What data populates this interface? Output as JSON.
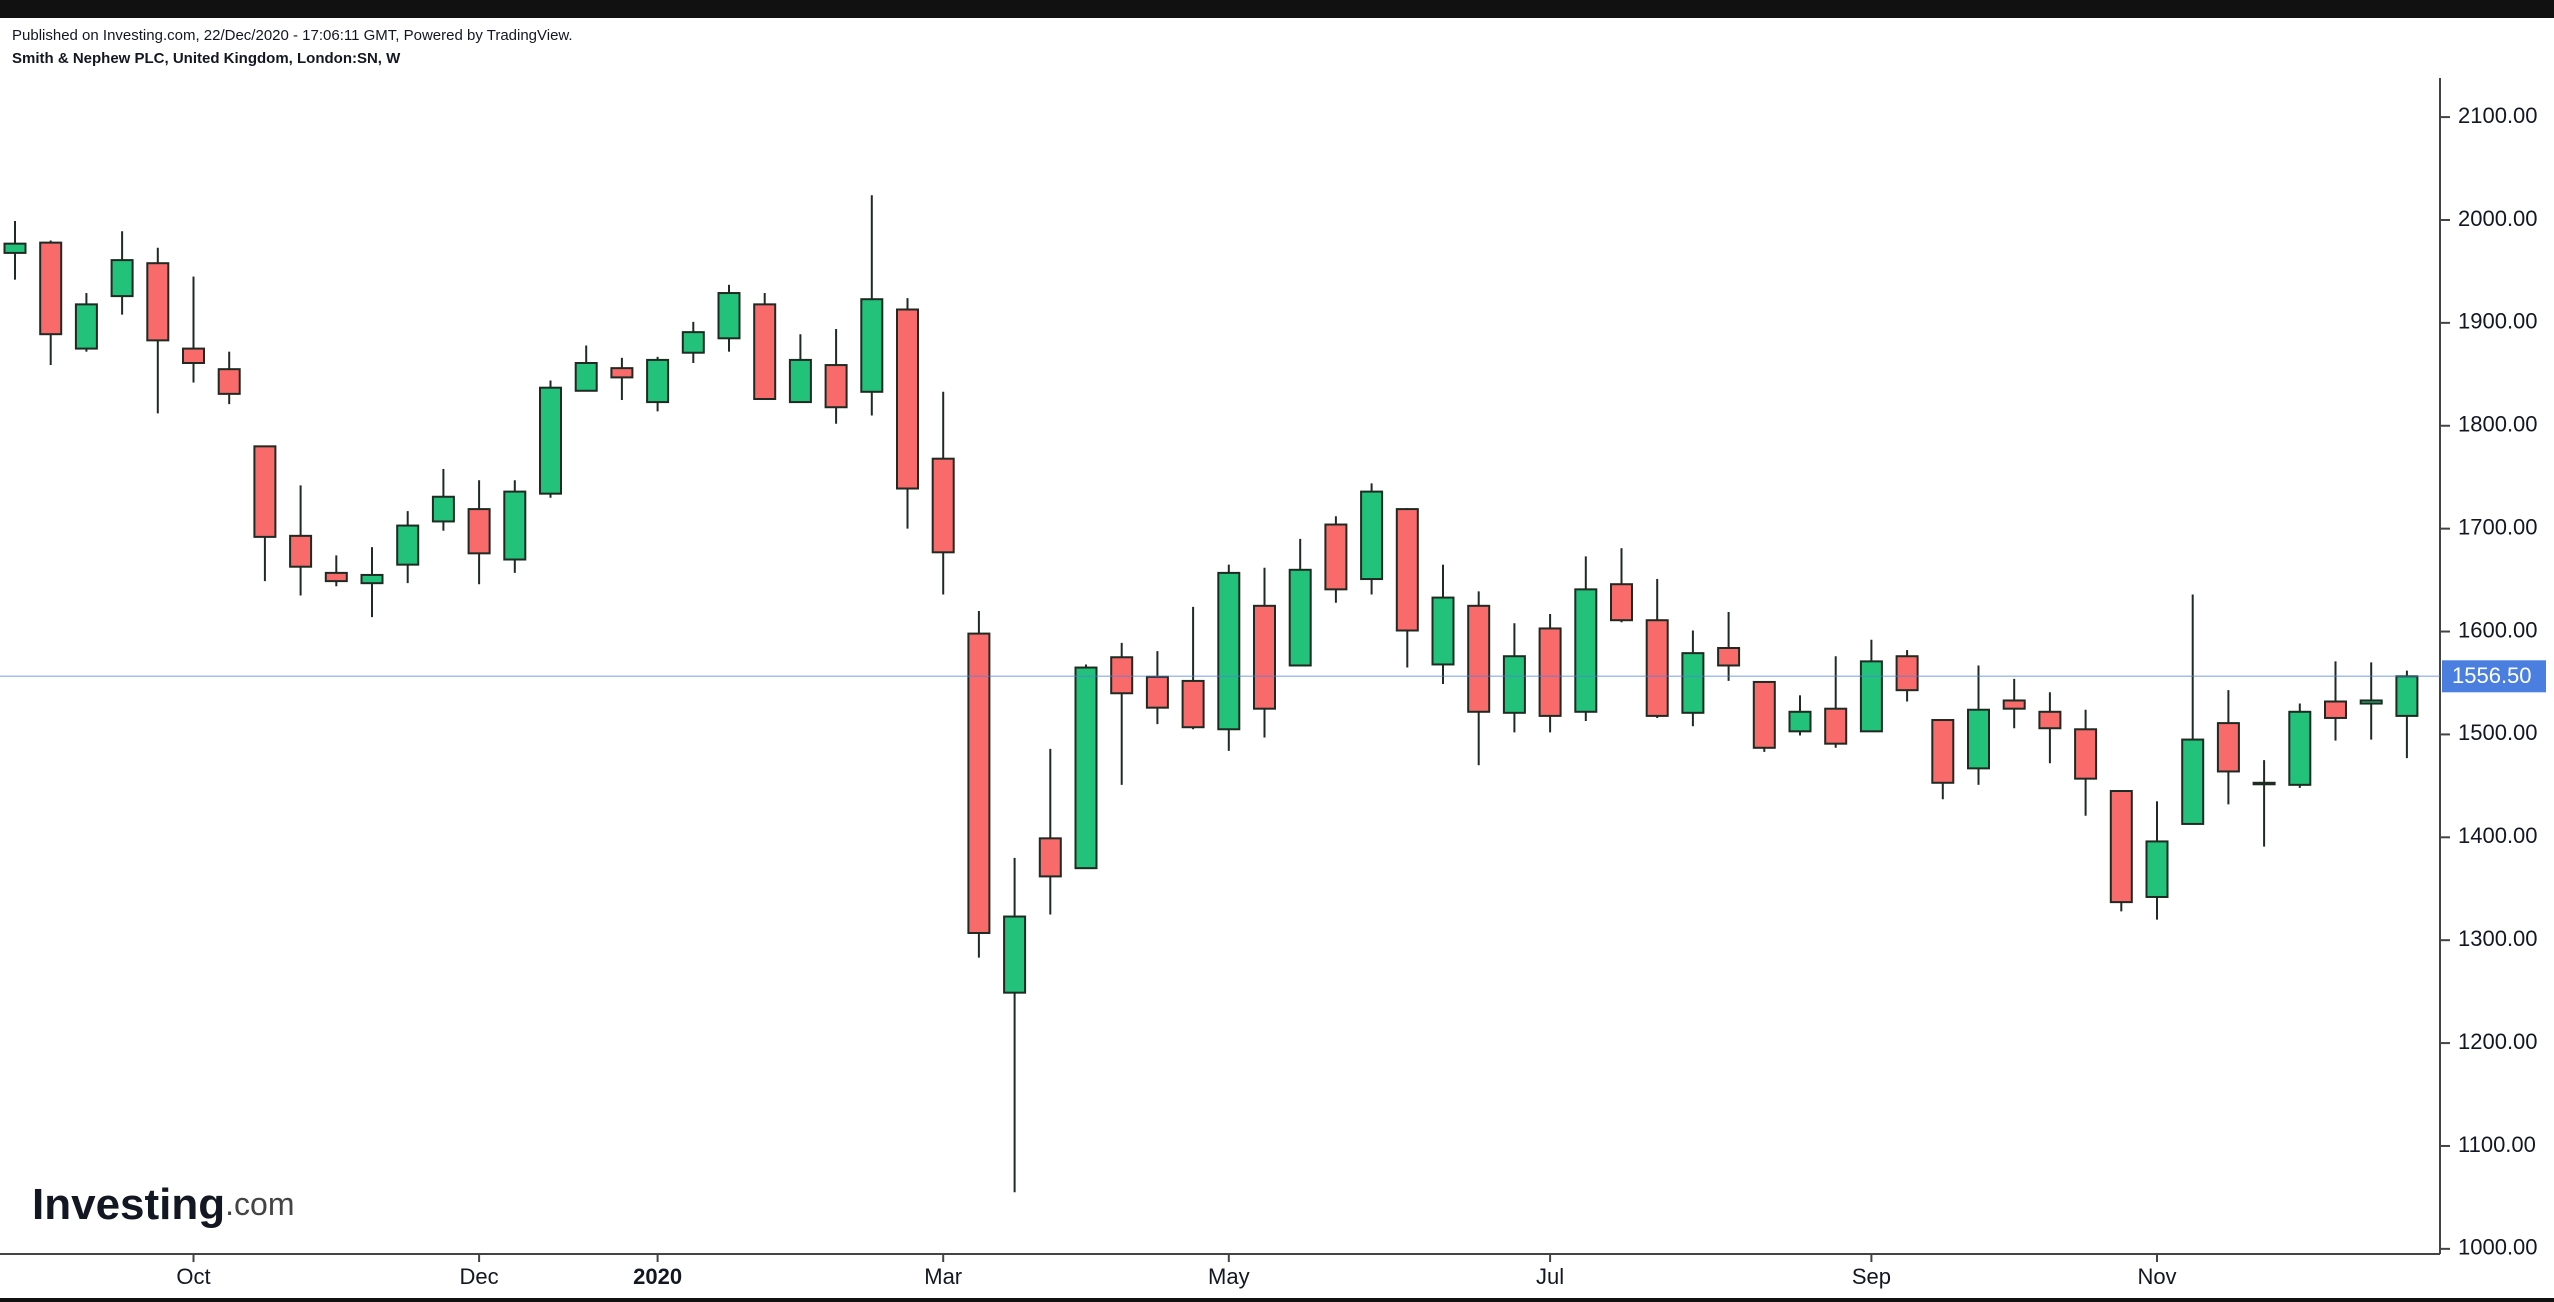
{
  "chart_data": {
    "type": "candlestick",
    "published": "Published on Investing.com, 22/Dec/2020 - 17:06:11 GMT, Powered by TradingView.",
    "title": "Smith & Nephew PLC, United Kingdom, London:SN, W",
    "logo": {
      "name": "Investing",
      "suffix": ".com"
    },
    "categories": [
      null,
      null,
      null,
      null,
      null,
      "Oct",
      null,
      null,
      null,
      null,
      null,
      null,
      null,
      "Dec",
      null,
      null,
      null,
      null,
      "2020",
      null,
      null,
      null,
      null,
      null,
      null,
      null,
      "Mar",
      null,
      null,
      null,
      null,
      null,
      null,
      null,
      "May",
      null,
      null,
      null,
      null,
      null,
      null,
      null,
      null,
      "Jul",
      null,
      null,
      null,
      null,
      null,
      null,
      null,
      null,
      "Sep",
      null,
      null,
      null,
      null,
      null,
      null,
      null,
      "Nov",
      null,
      null,
      null,
      null,
      null,
      null,
      null
    ],
    "open": [
      1968,
      1978,
      1875,
      1926,
      1958,
      1875,
      1855,
      1780,
      1693,
      1657,
      1647,
      1665,
      1707,
      1719,
      1670,
      1734,
      1834,
      1856,
      1823,
      1871,
      1885,
      1918,
      1823,
      1859,
      1833,
      1913,
      1768,
      1598,
      1249,
      1399,
      1370,
      1575,
      1556,
      1552,
      1505,
      1625,
      1567,
      1704,
      1651,
      1719,
      1568,
      1625,
      1521,
      1603,
      1522,
      1646,
      1611,
      1521,
      1584,
      1551,
      1503,
      1525,
      1503,
      1576,
      1514,
      1467,
      1533,
      1522,
      1505,
      1445,
      1342,
      1413,
      1511,
      1452,
      1451,
      1532,
      1530,
      1518
    ],
    "high": [
      1999,
      1980,
      1929,
      1989,
      1973,
      1945,
      1872,
      1780,
      1742,
      1674,
      1682,
      1717,
      1758,
      1747,
      1747,
      1844,
      1878,
      1866,
      1867,
      1901,
      1937,
      1929,
      1889,
      1894,
      2024,
      1924,
      1833,
      1620,
      1380,
      1486,
      1568,
      1589,
      1581,
      1624,
      1665,
      1662,
      1690,
      1712,
      1744,
      1720,
      1665,
      1639,
      1608,
      1617,
      1673,
      1681,
      1651,
      1601,
      1619,
      1551,
      1538,
      1576,
      1592,
      1582,
      1514,
      1567,
      1554,
      1541,
      1524,
      1445,
      1435,
      1636,
      1543,
      1475,
      1530,
      1571,
      1570,
      1562
    ],
    "low": [
      1942,
      1859,
      1872,
      1908,
      1812,
      1842,
      1821,
      1649,
      1635,
      1644,
      1614,
      1647,
      1698,
      1646,
      1657,
      1730,
      1834,
      1825,
      1814,
      1861,
      1872,
      1826,
      1823,
      1802,
      1810,
      1700,
      1636,
      1283,
      1055,
      1325,
      1370,
      1451,
      1510,
      1505,
      1484,
      1497,
      1567,
      1628,
      1636,
      1565,
      1549,
      1470,
      1502,
      1502,
      1513,
      1609,
      1516,
      1508,
      1552,
      1483,
      1499,
      1487,
      1503,
      1532,
      1437,
      1451,
      1506,
      1472,
      1421,
      1328,
      1320,
      1413,
      1432,
      1391,
      1448,
      1494,
      1495,
      1477
    ],
    "close": [
      1977,
      1889,
      1918,
      1961,
      1883,
      1861,
      1831,
      1692,
      1663,
      1649,
      1655,
      1703,
      1731,
      1676,
      1736,
      1837,
      1861,
      1847,
      1864,
      1891,
      1929,
      1826,
      1864,
      1818,
      1923,
      1739,
      1677,
      1307,
      1323,
      1362,
      1565,
      1540,
      1526,
      1507,
      1657,
      1525,
      1660,
      1641,
      1736,
      1601,
      1633,
      1522,
      1576,
      1518,
      1641,
      1611,
      1518,
      1579,
      1567,
      1487,
      1522,
      1491,
      1571,
      1543,
      1453,
      1524,
      1525,
      1506,
      1457,
      1337,
      1396,
      1495,
      1464,
      1453,
      1522,
      1516,
      1533,
      1556.5
    ],
    "up_color": "#22c27a",
    "down_color": "#f96a6a",
    "last_price": {
      "value": 1556.5,
      "label": "1556.50"
    },
    "last_price_color": "#4a7fe0",
    "ylim": [
      995,
      2138
    ],
    "yticks": [
      {
        "value": 1000,
        "label": "1000.00"
      },
      {
        "value": 1100,
        "label": "1100.00"
      },
      {
        "value": 1200,
        "label": "1200.00"
      },
      {
        "value": 1300,
        "label": "1300.00"
      },
      {
        "value": 1400,
        "label": "1400.00"
      },
      {
        "value": 1500,
        "label": "1500.00"
      },
      {
        "value": 1600,
        "label": "1600.00"
      },
      {
        "value": 1700,
        "label": "1700.00"
      },
      {
        "value": 1800,
        "label": "1800.00"
      },
      {
        "value": 1900,
        "label": "1900.00"
      },
      {
        "value": 2000,
        "label": "2000.00"
      },
      {
        "value": 2100,
        "label": "2100.00"
      }
    ]
  }
}
